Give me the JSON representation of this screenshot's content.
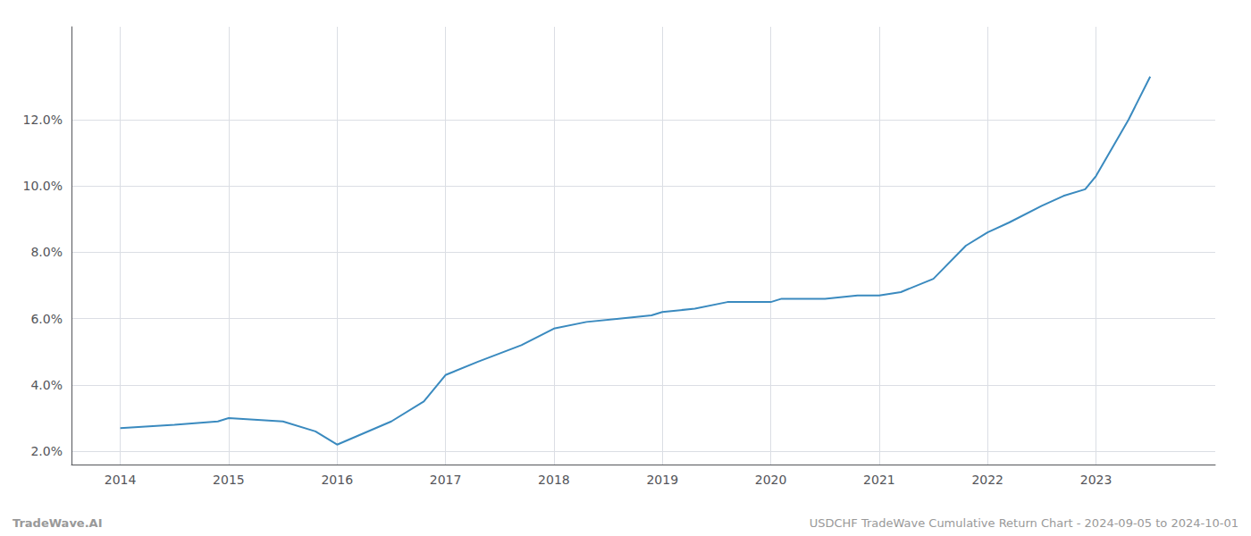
{
  "chart_data": {
    "type": "line",
    "annotations": [
      "TradeWave.AI",
      "USDCHF TradeWave Cumulative Return Chart - 2024-09-05 to 2024-10-01"
    ],
    "x": [
      2014.0,
      2014.5,
      2014.9,
      2015.0,
      2015.5,
      2015.8,
      2016.0,
      2016.5,
      2016.8,
      2017.0,
      2017.3,
      2017.7,
      2018.0,
      2018.3,
      2018.6,
      2018.9,
      2019.0,
      2019.3,
      2019.6,
      2019.9,
      2020.0,
      2020.1,
      2020.5,
      2020.8,
      2021.0,
      2021.2,
      2021.5,
      2021.8,
      2022.0,
      2022.2,
      2022.5,
      2022.7,
      2022.9,
      2023.0,
      2023.3,
      2023.5
    ],
    "values": [
      0.027,
      0.028,
      0.029,
      0.03,
      0.029,
      0.026,
      0.022,
      0.029,
      0.035,
      0.043,
      0.047,
      0.052,
      0.057,
      0.059,
      0.06,
      0.061,
      0.062,
      0.063,
      0.065,
      0.065,
      0.065,
      0.066,
      0.066,
      0.067,
      0.067,
      0.068,
      0.072,
      0.082,
      0.086,
      0.089,
      0.094,
      0.097,
      0.099,
      0.103,
      0.12,
      0.133
    ],
    "color": "#3a8abf",
    "xlim": [
      2013.55,
      2024.1
    ],
    "xticks": [
      2014,
      2015,
      2016,
      2017,
      2018,
      2019,
      2020,
      2021,
      2022,
      2023
    ],
    "ylim": [
      0.016,
      0.148
    ],
    "yticks": [
      {
        "value": 0.02,
        "label": "2.0%"
      },
      {
        "value": 0.04,
        "label": "4.0%"
      },
      {
        "value": 0.06,
        "label": "6.0%"
      },
      {
        "value": 0.08,
        "label": "8.0%"
      },
      {
        "value": 0.1,
        "label": "10.0%"
      },
      {
        "value": 0.12,
        "label": "12.0%"
      }
    ],
    "grid": true
  }
}
